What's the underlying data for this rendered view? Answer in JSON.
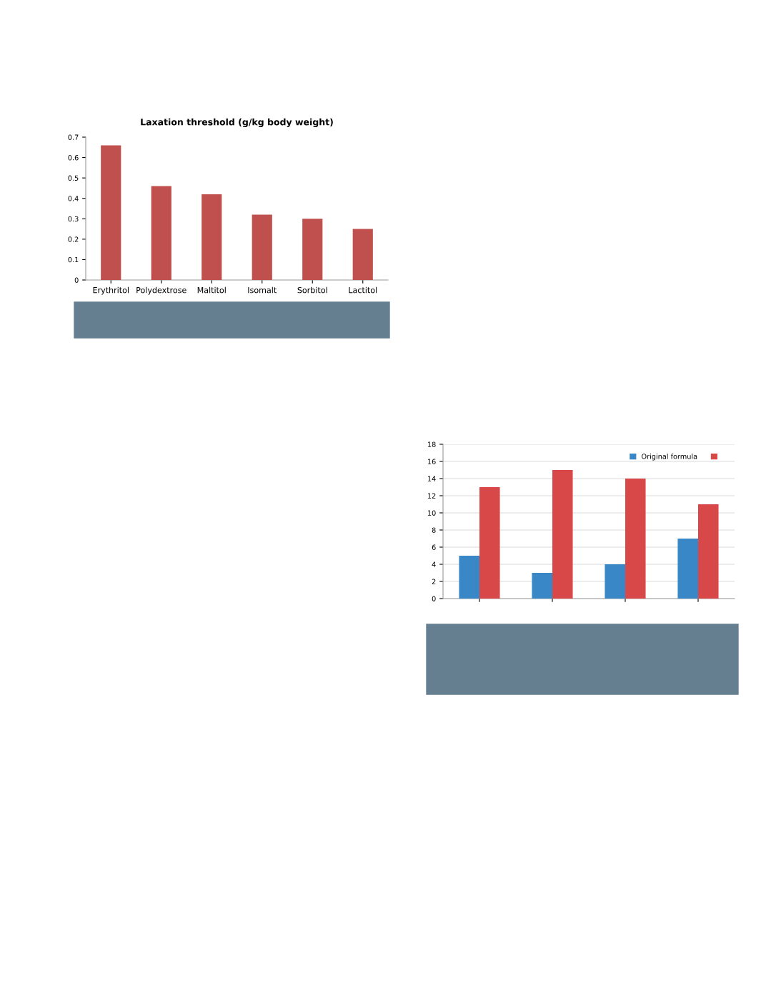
{
  "chart_data": [
    {
      "type": "bar",
      "title": "Laxation threshold (g/kg body weight)",
      "categories": [
        "Erythritol",
        "Polydextrose",
        "Maltitol",
        "Isomalt",
        "Sorbitol",
        "Lactitol"
      ],
      "values": [
        0.66,
        0.46,
        0.42,
        0.32,
        0.3,
        0.25
      ],
      "color": "#c0504d",
      "ylim": [
        0,
        0.7
      ],
      "yticks": [
        0,
        0.1,
        0.2,
        0.3,
        0.4,
        0.5,
        0.6,
        0.7
      ],
      "grid": false
    },
    {
      "type": "bar",
      "categories": [
        null,
        null,
        null,
        null
      ],
      "series": [
        {
          "name": "Original formula",
          "color": "#3a87c8",
          "values": [
            5,
            3,
            4,
            7
          ]
        },
        {
          "color": "#d94848",
          "values": [
            13,
            15,
            14,
            11
          ]
        }
      ],
      "ylim": [
        0,
        18
      ],
      "yticks": [
        0,
        2,
        4,
        6,
        8,
        10,
        12,
        14,
        16,
        18
      ],
      "grid": "y",
      "legend": "top right"
    }
  ]
}
